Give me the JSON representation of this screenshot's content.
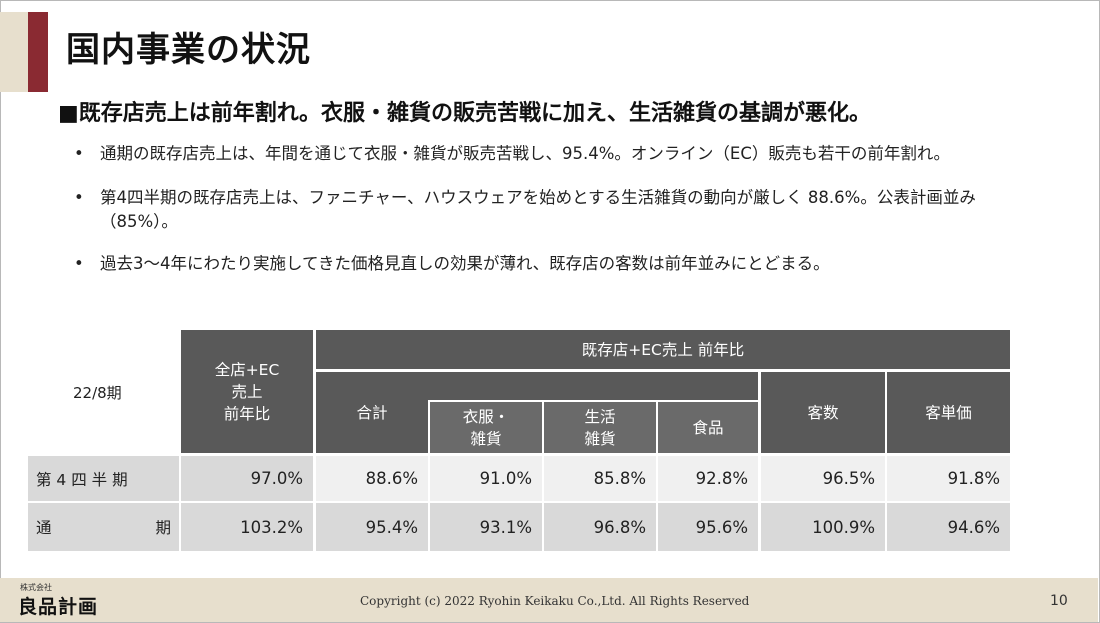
{
  "slide": {
    "title": "国内事業の状況",
    "headline": "■既存店売上は前年割れ。衣服・雑貨の販売苦戦に加え、生活雑貨の基調が悪化。",
    "bullets": [
      "通期の既存店売上は、年間を通じて衣服・雑貨が販売苦戦し、95.4%。オンライン（EC）販売も若干の前年割れ。",
      "第4四半期の既存店売上は、ファニチャー、ハウスウェアを始めとする生活雑貨の動向が厳しく 88.6%。公表計画並み（85%）。",
      "過去3～4年にわたり実施してきた価格見直しの効果が薄れ、既存店の客数は前年並みにとどまる。"
    ],
    "bullet_marker": "•"
  },
  "table": {
    "period": "22/8期",
    "header_all": [
      "全店+EC",
      "売上",
      "前年比"
    ],
    "header_group": "既存店+EC売上 前年比",
    "header_total": "合計",
    "header_clothing": [
      "衣服・",
      "雑貨"
    ],
    "header_living": [
      "生活",
      "雑貨"
    ],
    "header_food": "食品",
    "header_customers": "客数",
    "header_unit_price": "客単価",
    "rows": [
      {
        "label": "第 4 四 半 期",
        "values": [
          "97.0%",
          "88.6%",
          "91.0%",
          "85.8%",
          "92.8%",
          "96.5%",
          "91.8%"
        ]
      },
      {
        "label_left": "通",
        "label_right": "期",
        "values": [
          "103.2%",
          "95.4%",
          "93.1%",
          "96.8%",
          "95.6%",
          "100.9%",
          "94.6%"
        ]
      }
    ]
  },
  "footer": {
    "logo_small": "株式会社",
    "logo": "良品計画",
    "copyright": "Copyright (c) 2022 Ryohin Keikaku Co.,Ltd. All Rights Reserved",
    "page_number": "10"
  },
  "colors": {
    "accent_bar": "#8a2a32",
    "band": "#e7dfcd",
    "header_fill": "#595959",
    "row_fill": "#d9d9d9"
  }
}
